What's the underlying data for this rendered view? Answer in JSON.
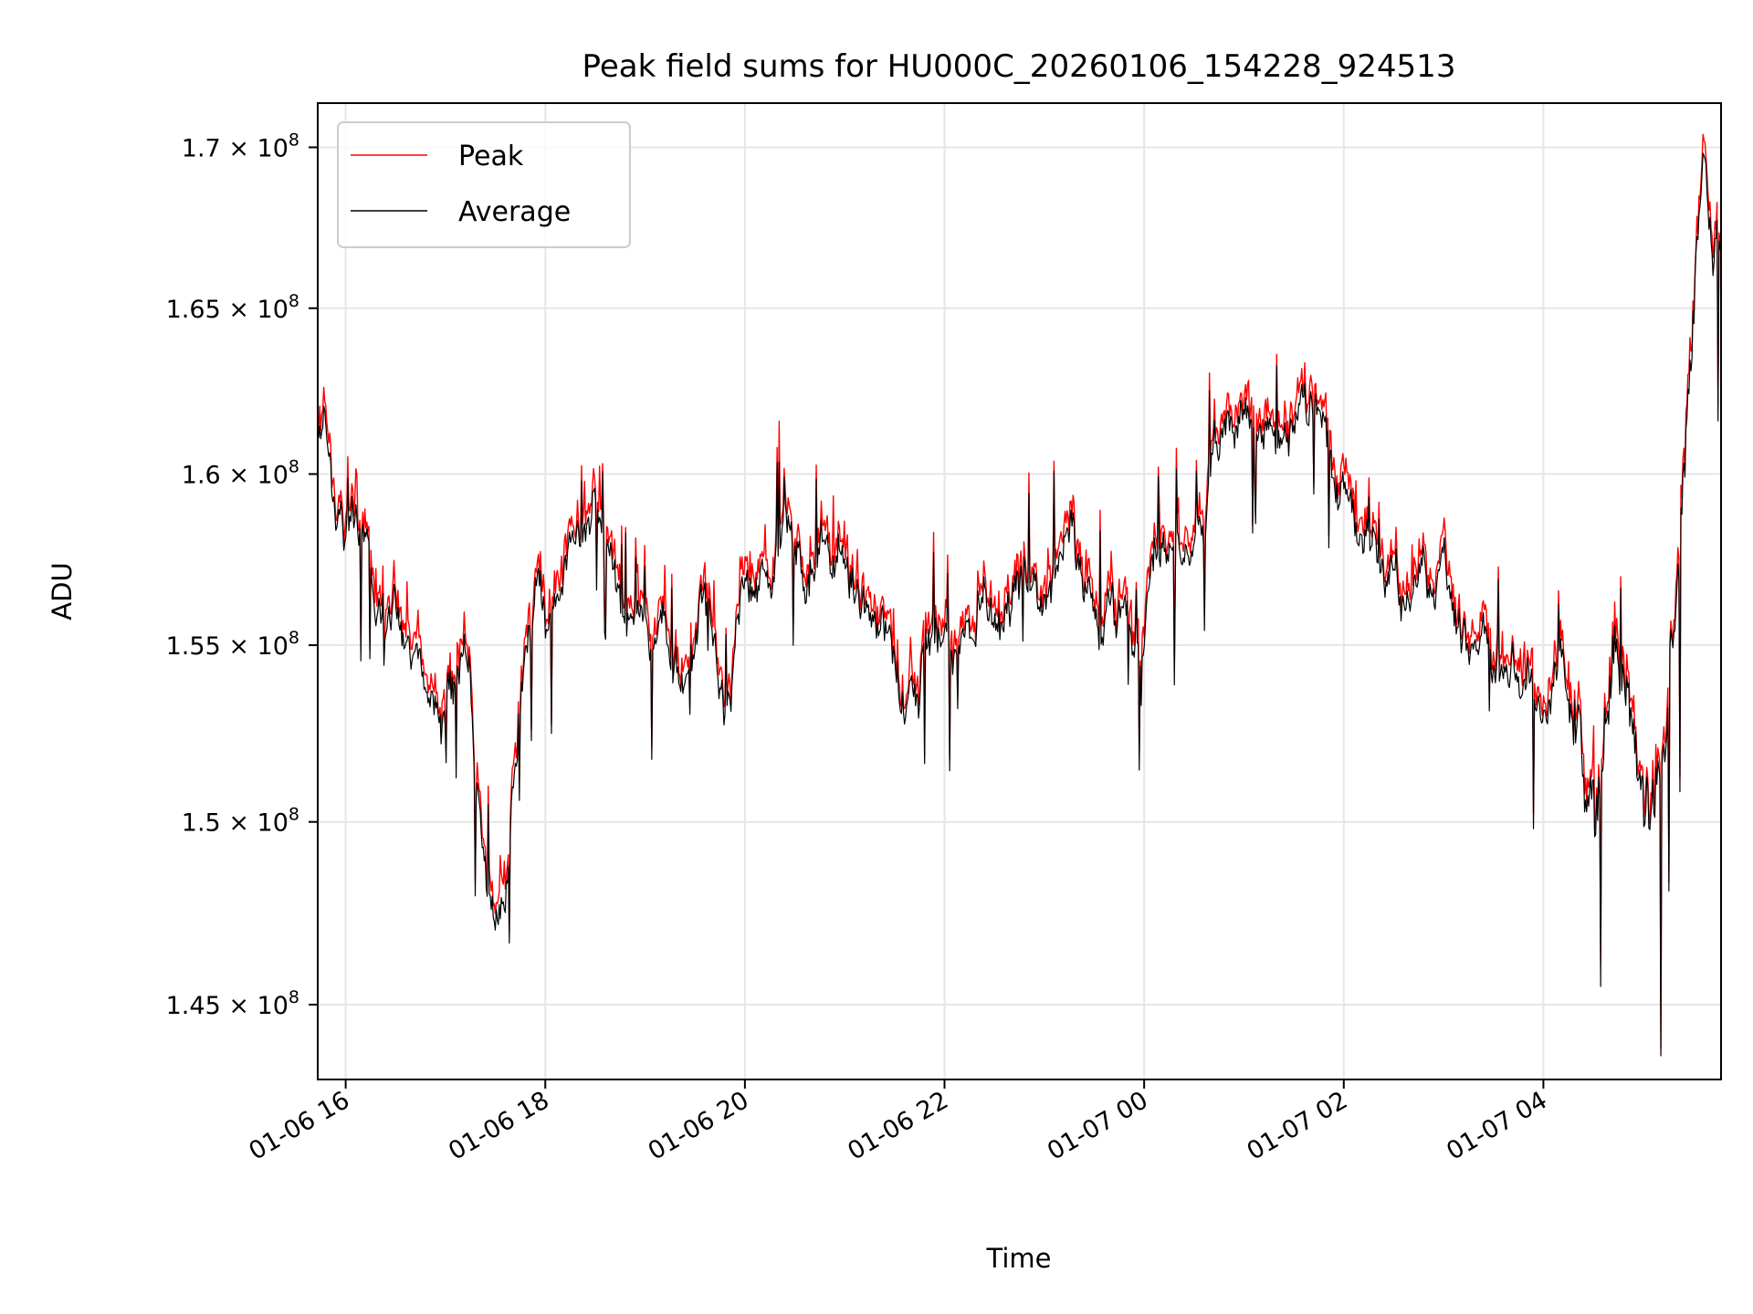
{
  "chart_data": {
    "type": "line",
    "title": "Peak field sums for HU000C_20260106_154228_924513",
    "xlabel": "Time",
    "ylabel": "ADU",
    "y_scale": "log",
    "x_start_hours": 15.72,
    "x_end_hours": 29.78,
    "ylim": [
      143000000,
      171400000
    ],
    "x_ticks": [
      {
        "hours": 16,
        "label": "01-06 16"
      },
      {
        "hours": 18,
        "label": "01-06 18"
      },
      {
        "hours": 20,
        "label": "01-06 20"
      },
      {
        "hours": 22,
        "label": "01-06 22"
      },
      {
        "hours": 24,
        "label": "01-07 00"
      },
      {
        "hours": 26,
        "label": "01-07 02"
      },
      {
        "hours": 28,
        "label": "01-07 04"
      }
    ],
    "y_ticks": [
      {
        "value": 145000000,
        "mantissa": "1.45",
        "exponent": "8"
      },
      {
        "value": 150000000,
        "mantissa": "1.5",
        "exponent": "8"
      },
      {
        "value": 155000000,
        "mantissa": "1.55",
        "exponent": "8"
      },
      {
        "value": 160000000,
        "mantissa": "1.6",
        "exponent": "8"
      },
      {
        "value": 165000000,
        "mantissa": "1.65",
        "exponent": "8"
      },
      {
        "value": 170000000,
        "mantissa": "1.7",
        "exponent": "8"
      }
    ],
    "times_x_glyph": "×",
    "grid": true,
    "legend_position": "top-left",
    "series": [
      {
        "name": "Peak",
        "color": "#ff0000"
      },
      {
        "name": "Average",
        "color": "#000000"
      }
    ],
    "average_anchor_points": [
      [
        15.72,
        161.5
      ],
      [
        15.78,
        162.5
      ],
      [
        15.85,
        160.8
      ],
      [
        15.92,
        158.5
      ],
      [
        16.0,
        157.5
      ],
      [
        16.1,
        159.0
      ],
      [
        16.2,
        158.0
      ],
      [
        16.3,
        156.0
      ],
      [
        16.4,
        155.0
      ],
      [
        16.5,
        156.5
      ],
      [
        16.6,
        154.5
      ],
      [
        16.7,
        155.0
      ],
      [
        16.8,
        153.8
      ],
      [
        16.9,
        152.5
      ],
      [
        17.0,
        152.8
      ],
      [
        17.1,
        153.5
      ],
      [
        17.2,
        155.0
      ],
      [
        17.3,
        152.0
      ],
      [
        17.4,
        149.5
      ],
      [
        17.5,
        147.5
      ],
      [
        17.6,
        148.5
      ],
      [
        17.7,
        152.5
      ],
      [
        17.8,
        155.0
      ],
      [
        17.9,
        156.5
      ],
      [
        18.0,
        156.0
      ],
      [
        18.1,
        157.0
      ],
      [
        18.2,
        158.0
      ],
      [
        18.3,
        157.5
      ],
      [
        18.4,
        159.0
      ],
      [
        18.5,
        159.5
      ],
      [
        18.6,
        158.5
      ],
      [
        18.7,
        157.0
      ],
      [
        18.8,
        156.0
      ],
      [
        18.9,
        155.0
      ],
      [
        19.0,
        155.5
      ],
      [
        19.1,
        154.8
      ],
      [
        19.2,
        155.5
      ],
      [
        19.3,
        154.5
      ],
      [
        19.4,
        154.0
      ],
      [
        19.5,
        155.0
      ],
      [
        19.6,
        156.5
      ],
      [
        19.7,
        155.0
      ],
      [
        19.8,
        152.5
      ],
      [
        19.9,
        154.5
      ],
      [
        20.0,
        156.0
      ],
      [
        20.1,
        156.5
      ],
      [
        20.2,
        157.5
      ],
      [
        20.3,
        158.0
      ],
      [
        20.4,
        158.5
      ],
      [
        20.5,
        158.0
      ],
      [
        20.6,
        157.5
      ],
      [
        20.7,
        158.0
      ],
      [
        20.8,
        158.5
      ],
      [
        20.9,
        157.5
      ],
      [
        21.0,
        158.0
      ],
      [
        21.1,
        157.0
      ],
      [
        21.2,
        156.0
      ],
      [
        21.3,
        155.8
      ],
      [
        21.4,
        155.5
      ],
      [
        21.5,
        154.5
      ],
      [
        21.6,
        153.5
      ],
      [
        21.7,
        154.0
      ],
      [
        21.8,
        155.0
      ],
      [
        21.9,
        155.5
      ],
      [
        22.0,
        156.0
      ],
      [
        22.1,
        155.0
      ],
      [
        22.2,
        155.5
      ],
      [
        22.3,
        156.0
      ],
      [
        22.4,
        157.0
      ],
      [
        22.5,
        156.5
      ],
      [
        22.6,
        156.0
      ],
      [
        22.7,
        156.5
      ],
      [
        22.8,
        157.0
      ],
      [
        22.9,
        157.5
      ],
      [
        23.0,
        156.0
      ],
      [
        23.1,
        157.0
      ],
      [
        23.2,
        158.0
      ],
      [
        23.3,
        157.5
      ],
      [
        23.4,
        156.5
      ],
      [
        23.5,
        157.0
      ],
      [
        23.6,
        156.5
      ],
      [
        23.7,
        156.0
      ],
      [
        23.8,
        156.5
      ],
      [
        23.9,
        156.0
      ],
      [
        24.0,
        156.0
      ],
      [
        24.1,
        157.5
      ],
      [
        24.2,
        158.5
      ],
      [
        24.3,
        158.0
      ],
      [
        24.4,
        157.5
      ],
      [
        24.5,
        158.5
      ],
      [
        24.6,
        159.0
      ],
      [
        24.7,
        161.0
      ],
      [
        24.8,
        162.0
      ],
      [
        24.9,
        161.5
      ],
      [
        25.0,
        162.0
      ],
      [
        25.1,
        161.0
      ],
      [
        25.2,
        161.5
      ],
      [
        25.3,
        161.0
      ],
      [
        25.4,
        160.5
      ],
      [
        25.5,
        161.0
      ],
      [
        25.6,
        161.5
      ],
      [
        25.7,
        162.0
      ],
      [
        25.8,
        161.0
      ],
      [
        25.9,
        159.0
      ],
      [
        26.0,
        159.5
      ],
      [
        26.1,
        159.0
      ],
      [
        26.2,
        158.0
      ],
      [
        26.3,
        158.5
      ],
      [
        26.4,
        157.5
      ],
      [
        26.5,
        157.0
      ],
      [
        26.6,
        156.5
      ],
      [
        26.7,
        157.5
      ],
      [
        26.8,
        157.0
      ],
      [
        26.9,
        156.5
      ],
      [
        27.0,
        157.0
      ],
      [
        27.1,
        156.0
      ],
      [
        27.2,
        155.5
      ],
      [
        27.3,
        155.0
      ],
      [
        27.4,
        155.5
      ],
      [
        27.5,
        155.0
      ],
      [
        27.6,
        154.5
      ],
      [
        27.7,
        155.0
      ],
      [
        27.8,
        154.5
      ],
      [
        27.9,
        154.0
      ],
      [
        28.0,
        153.5
      ],
      [
        28.1,
        154.0
      ],
      [
        28.2,
        154.5
      ],
      [
        28.3,
        153.5
      ],
      [
        28.4,
        152.0
      ],
      [
        28.5,
        150.0
      ],
      [
        28.6,
        151.0
      ],
      [
        28.7,
        155.0
      ],
      [
        28.8,
        153.0
      ],
      [
        28.9,
        152.5
      ],
      [
        29.0,
        151.0
      ],
      [
        29.1,
        150.5
      ],
      [
        29.2,
        151.5
      ],
      [
        29.3,
        155.0
      ],
      [
        29.4,
        160.0
      ],
      [
        29.5,
        165.0
      ],
      [
        29.55,
        168.0
      ],
      [
        29.6,
        170.0
      ],
      [
        29.65,
        168.5
      ],
      [
        29.7,
        166.5
      ],
      [
        29.78,
        167.0
      ]
    ],
    "samples_per_series": 1400
  }
}
